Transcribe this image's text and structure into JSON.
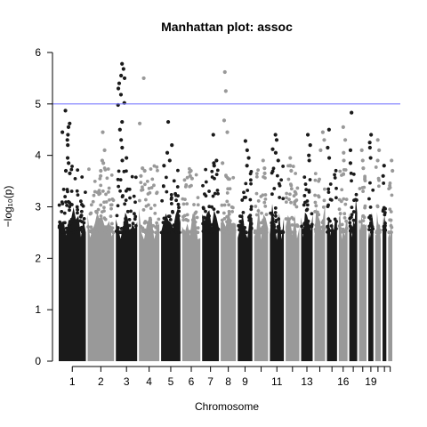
{
  "chart_data": {
    "type": "scatter",
    "title": "Manhattan plot: assoc",
    "xlabel": "Chromosome",
    "ylabel": "−log₁₀(p)",
    "ylim": [
      0,
      6
    ],
    "y_ticks": [
      0,
      1,
      2,
      3,
      4,
      5,
      6
    ],
    "x_tick_labels": [
      "1",
      "2",
      "3",
      "4",
      "5",
      "6",
      "7",
      "8",
      "9",
      "11",
      "13",
      "16",
      "19"
    ],
    "chromosomes": [
      "1",
      "2",
      "3",
      "4",
      "5",
      "6",
      "7",
      "8",
      "9",
      "10",
      "11",
      "12",
      "13",
      "14",
      "15",
      "16",
      "17",
      "18",
      "19",
      "20",
      "21",
      "22"
    ],
    "colors": [
      "#1a1a1a",
      "#999999"
    ],
    "threshold": {
      "value": 5,
      "color": "#7b7bff"
    },
    "series": [
      {
        "chromosome": "1",
        "peaks": [
          4.87,
          4.62,
          4.4,
          4.2,
          4.55,
          4.45,
          4.3,
          3.95,
          3.85,
          3.7,
          3.65
        ]
      },
      {
        "chromosome": "2",
        "peaks": [
          4.45,
          4.1,
          3.9,
          3.85,
          3.7,
          3.6
        ]
      },
      {
        "chromosome": "3",
        "peaks": [
          5.78,
          5.68,
          5.55,
          5.5,
          5.4,
          5.3,
          5.18,
          5.02,
          4.98,
          4.65,
          4.5,
          4.3,
          4.15,
          3.95,
          3.9
        ]
      },
      {
        "chromosome": "4",
        "peaks": [
          5.5,
          4.62,
          3.75,
          3.7,
          3.6
        ]
      },
      {
        "chromosome": "5",
        "peaks": [
          4.65,
          4.2,
          4.05,
          3.9,
          3.8
        ]
      },
      {
        "chromosome": "6",
        "peaks": [
          3.7,
          3.6,
          3.55
        ]
      },
      {
        "chromosome": "7",
        "peaks": [
          4.4,
          3.9,
          3.85,
          3.8
        ]
      },
      {
        "chromosome": "8",
        "peaks": [
          5.62,
          5.25,
          4.68,
          4.45,
          3.85
        ]
      },
      {
        "chromosome": "9",
        "peaks": [
          4.28,
          4.1,
          3.95,
          3.8
        ]
      },
      {
        "chromosome": "10",
        "peaks": [
          3.9,
          3.75,
          3.65
        ]
      },
      {
        "chromosome": "11",
        "peaks": [
          4.4,
          4.3,
          4.12,
          4.05,
          3.9
        ]
      },
      {
        "chromosome": "12",
        "peaks": [
          3.95,
          3.8,
          3.7
        ]
      },
      {
        "chromosome": "13",
        "peaks": [
          4.4,
          4.2,
          4.0,
          3.9
        ]
      },
      {
        "chromosome": "14",
        "peaks": [
          4.45,
          4.3,
          4.1
        ]
      },
      {
        "chromosome": "15",
        "peaks": [
          4.5,
          4.15,
          3.95
        ]
      },
      {
        "chromosome": "16",
        "peaks": [
          4.55,
          4.3,
          4.05,
          3.9
        ]
      },
      {
        "chromosome": "17",
        "peaks": [
          4.83,
          4.1,
          3.85
        ]
      },
      {
        "chromosome": "18",
        "peaks": [
          4.1,
          3.9,
          3.75
        ]
      },
      {
        "chromosome": "19",
        "peaks": [
          4.4,
          4.25,
          4.15,
          3.95
        ]
      },
      {
        "chromosome": "20",
        "peaks": [
          4.3,
          4.1,
          3.9
        ]
      },
      {
        "chromosome": "21",
        "peaks": [
          3.8,
          3.6
        ]
      },
      {
        "chromosome": "22",
        "peaks": [
          3.9,
          3.7
        ]
      }
    ]
  }
}
